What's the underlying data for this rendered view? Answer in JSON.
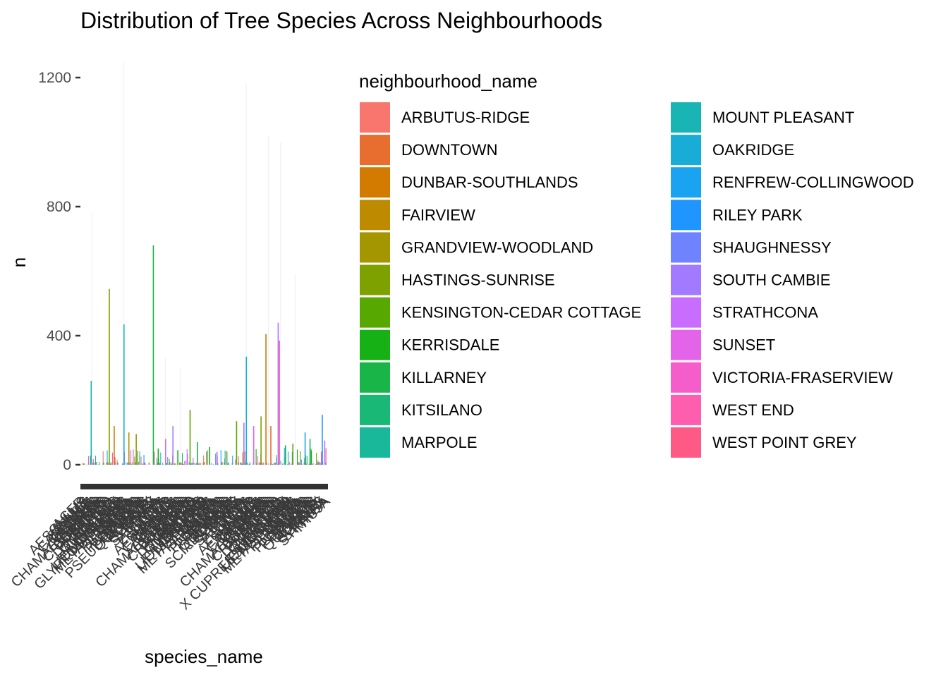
{
  "chart_data": {
    "type": "bar",
    "title": "Distribution of Tree Species Across Neighbourhoods",
    "xlabel": "species_name",
    "ylabel": "n",
    "ylim": [
      0,
      1290
    ],
    "yticks": [
      0,
      400,
      800,
      1200
    ],
    "legend_title": "neighbourhood_name",
    "legend_position": "right",
    "grid": false,
    "series": [
      {
        "name": "ARBUTUS-RIDGE",
        "color": "#F8766D"
      },
      {
        "name": "DOWNTOWN",
        "color": "#E7851E"
      },
      {
        "name": "DUNBAR-SOUTHLANDS",
        "color": "#D09400"
      },
      {
        "name": "FAIRVIEW",
        "color": "#B2A100"
      },
      {
        "name": "GRANDVIEW-WOODLAND",
        "color": "#89AC00"
      },
      {
        "name": "HASTINGS-SUNRISE",
        "color": "#45B500"
      },
      {
        "name": "KENSINGTON-CEDAR COTTAGE",
        "color": "#00BC51"
      },
      {
        "name": "KERRISDALE",
        "color": "#00C087"
      },
      {
        "name": "KILLARNEY",
        "color": "#00C0B2"
      },
      {
        "name": "KITSILANO",
        "color": "#00BCD6"
      },
      {
        "name": "MARPOLE",
        "color": "#00B3F2"
      },
      {
        "name": "MOUNT PLEASANT",
        "color": "#29A3FF"
      },
      {
        "name": "OAKRIDGE",
        "color": "#9C8DFF"
      },
      {
        "name": "RENFREW-COLLINGWOOD",
        "color": "#D277FF"
      },
      {
        "name": "RILEY PARK",
        "color": "#F166E8"
      },
      {
        "name": "SHAUGHNESSY",
        "color": "#FF61C7"
      },
      {
        "name": "SOUTH CAMBIE",
        "color": "#FF689E"
      },
      {
        "name": "STRATHCONA",
        "color": "#F8766D"
      },
      {
        "name": "SUNSET",
        "color": "#E7861B"
      },
      {
        "name": "VICTORIA-FRASERVIEW",
        "color": "#C09B00"
      },
      {
        "name": "WEST END",
        "color": "#7CAE00"
      },
      {
        "name": "WEST POINT GREY",
        "color": "#00BA38"
      }
    ],
    "legend_swatches": [
      "#F8766D",
      "#E76E2F",
      "#D37B00",
      "#BE8A00",
      "#A39600",
      "#7FA100",
      "#57A800",
      "#16B115",
      "#19B548",
      "#19B876",
      "#19B89A",
      "#19B5B5",
      "#19ACD6",
      "#19A3F0",
      "#1E95FF",
      "#6F83FF",
      "#A27AFF",
      "#C86DFF",
      "#E464E9",
      "#F55DCB",
      "#FF5DAE",
      "#FF5A86"
    ],
    "highlight_bars": [
      {
        "x_frac": 0.036,
        "value": 260,
        "color": "#19B5B5"
      },
      {
        "x_frac": 0.11,
        "value": 545,
        "color": "#7FA100"
      },
      {
        "x_frac": 0.13,
        "value": 120,
        "color": "#D37B00"
      },
      {
        "x_frac": 0.17,
        "value": 435,
        "color": "#19ACD6"
      },
      {
        "x_frac": 0.19,
        "value": 100,
        "color": "#BE8A00"
      },
      {
        "x_frac": 0.22,
        "value": 95,
        "color": "#A39600"
      },
      {
        "x_frac": 0.29,
        "value": 680,
        "color": "#19B548"
      },
      {
        "x_frac": 0.31,
        "value": 50,
        "color": "#16B115"
      },
      {
        "x_frac": 0.34,
        "value": 80,
        "color": "#C86DFF"
      },
      {
        "x_frac": 0.37,
        "value": 120,
        "color": "#A27AFF"
      },
      {
        "x_frac": 0.39,
        "value": 45,
        "color": "#16B115"
      },
      {
        "x_frac": 0.44,
        "value": 170,
        "color": "#57A800"
      },
      {
        "x_frac": 0.47,
        "value": 70,
        "color": "#19B548"
      },
      {
        "x_frac": 0.52,
        "value": 55,
        "color": "#16B115"
      },
      {
        "x_frac": 0.55,
        "value": 40,
        "color": "#A27AFF"
      },
      {
        "x_frac": 0.63,
        "value": 135,
        "color": "#57A800"
      },
      {
        "x_frac": 0.66,
        "value": 130,
        "color": "#A27AFF"
      },
      {
        "x_frac": 0.67,
        "value": 335,
        "color": "#19ACD6"
      },
      {
        "x_frac": 0.7,
        "value": 120,
        "color": "#E464E9"
      },
      {
        "x_frac": 0.73,
        "value": 150,
        "color": "#7FA100"
      },
      {
        "x_frac": 0.75,
        "value": 405,
        "color": "#D37B00"
      },
      {
        "x_frac": 0.77,
        "value": 120,
        "color": "#E76E2F"
      },
      {
        "x_frac": 0.8,
        "value": 440,
        "color": "#A27AFF"
      },
      {
        "x_frac": 0.805,
        "value": 385,
        "color": "#FF5DAE"
      },
      {
        "x_frac": 0.83,
        "value": 60,
        "color": "#19B548"
      },
      {
        "x_frac": 0.86,
        "value": 65,
        "color": "#57A800"
      },
      {
        "x_frac": 0.91,
        "value": 100,
        "color": "#19A3F0"
      },
      {
        "x_frac": 0.93,
        "value": 80,
        "color": "#19B876"
      },
      {
        "x_frac": 0.98,
        "value": 155,
        "color": "#1E95FF"
      },
      {
        "x_frac": 0.99,
        "value": 75,
        "color": "#C86DFF"
      }
    ],
    "faint_bars": [
      {
        "x_frac": 0.04,
        "value": 780
      },
      {
        "x_frac": 0.17,
        "value": 1250
      },
      {
        "x_frac": 0.34,
        "value": 330
      },
      {
        "x_frac": 0.4,
        "value": 300
      },
      {
        "x_frac": 0.67,
        "value": 1180
      },
      {
        "x_frac": 0.76,
        "value": 1020
      },
      {
        "x_frac": 0.81,
        "value": 1000
      },
      {
        "x_frac": 0.87,
        "value": 590
      }
    ],
    "x_tick_labels_visible": [
      "GLYPTOSTROBUS",
      "PSEUDOTSUGA",
      "SCIADOPITYS",
      "X CUPRESSOCYPARIS",
      "CEDRUS",
      "MALUS",
      "PRUNUS",
      "TILIA"
    ]
  }
}
